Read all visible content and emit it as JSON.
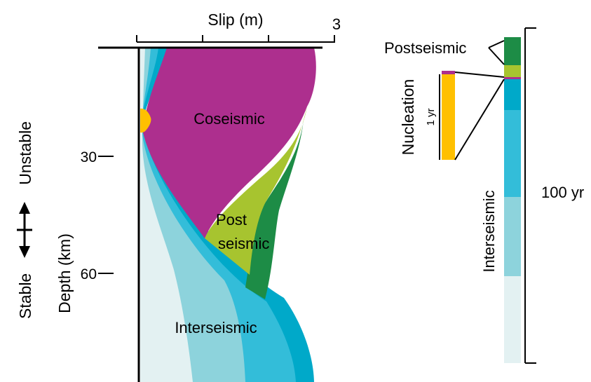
{
  "slip_axis": {
    "label": "Slip (m)",
    "max_label": "3"
  },
  "depth_axis": {
    "label": "Depth (km)",
    "ticks": [
      "30",
      "60"
    ]
  },
  "stability": {
    "stable": "Stable",
    "unstable": "Unstable"
  },
  "phases": {
    "coseismic": "Coseismic",
    "post_line1": "Post",
    "post_line2": "seismic",
    "interseismic": "Interseismic"
  },
  "timeline": {
    "postseismic": "Postseismic",
    "nucleation": "Nucleation",
    "one_year": "1 yr",
    "interseismic": "Interseismic",
    "hundred_years": "100 yr"
  },
  "colors": {
    "coseismic": "#ad2f8e",
    "post_light": "#a7c42f",
    "post_dark": "#1d8c46",
    "nucleation": "#ffc000",
    "inter_1": "#00a9c9",
    "inter_2": "#33bdd9",
    "inter_3": "#8dd3dc",
    "inter_4": "#e3f1f2"
  }
}
